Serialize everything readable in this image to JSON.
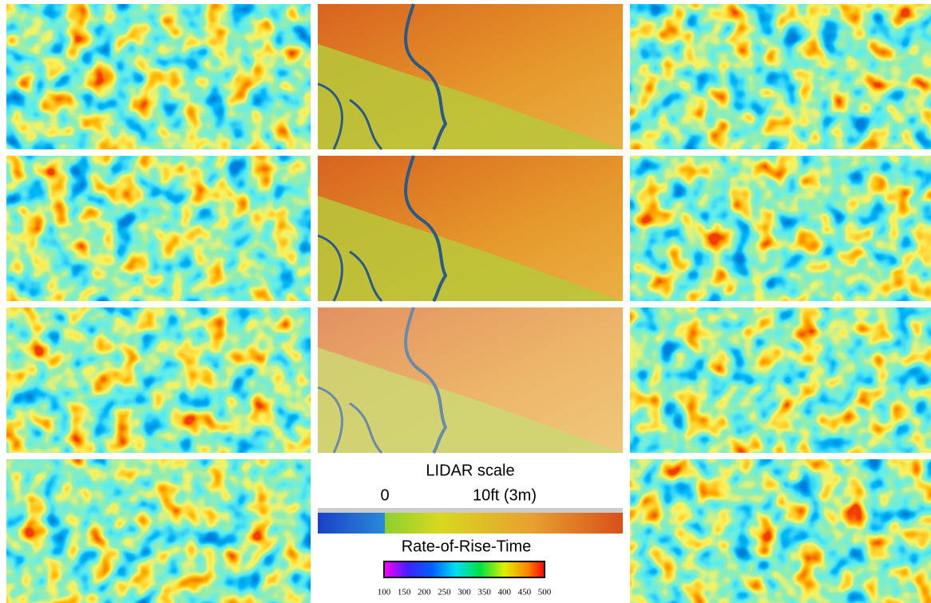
{
  "lidar_scale": {
    "title": "LIDAR scale",
    "labels": [
      "0",
      "10ft (3m)"
    ]
  },
  "rate_scale": {
    "title": "Rate-of-Rise-Time",
    "ticks": [
      100,
      150,
      200,
      250,
      300,
      350,
      400,
      450,
      500
    ]
  }
}
